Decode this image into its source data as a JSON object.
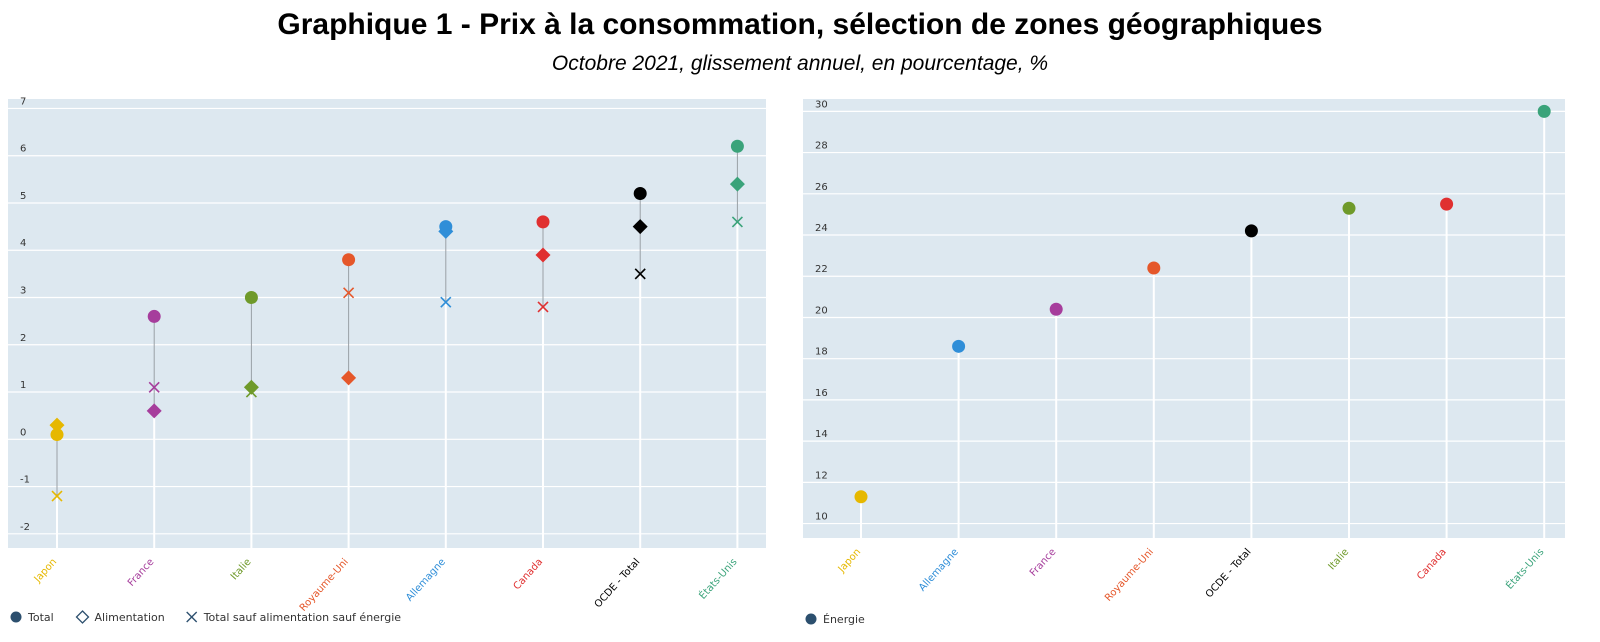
{
  "header": {
    "title": "Graphique 1 - Prix à la consommation, sélection de zones géographiques",
    "subtitle": "Octobre 2021, glissement annuel, en pourcentage, %"
  },
  "chart_data": [
    {
      "type": "scatter",
      "categories": [
        "Japon",
        "France",
        "Italie",
        "Royaume-Uni",
        "Allemagne",
        "Canada",
        "OCDE - Total",
        "États-Unis"
      ],
      "category_colors": [
        "#e6b800",
        "#a63d9c",
        "#6f9a2a",
        "#e5572a",
        "#2f8ed8",
        "#e03030",
        "#000000",
        "#3aa37a"
      ],
      "series": [
        {
          "name": "Total",
          "marker": "circle",
          "values": [
            0.1,
            2.6,
            3.0,
            3.8,
            4.5,
            4.6,
            5.2,
            6.2
          ]
        },
        {
          "name": "Alimentation",
          "marker": "diamond",
          "values": [
            0.3,
            0.6,
            1.1,
            1.3,
            4.4,
            3.9,
            4.5,
            5.4
          ]
        },
        {
          "name": "Total sauf alimentation sauf énergie",
          "marker": "x",
          "values": [
            -1.2,
            1.1,
            1.0,
            3.1,
            2.9,
            2.8,
            3.5,
            4.6
          ]
        }
      ],
      "ylim": [
        -2.3,
        7.2
      ],
      "yticks": [
        -2,
        -1,
        0,
        1,
        2,
        3,
        4,
        5,
        6,
        7
      ]
    },
    {
      "type": "scatter",
      "categories": [
        "Japon",
        "Allemagne",
        "France",
        "Royaume-Uni",
        "OCDE - Total",
        "Italie",
        "Canada",
        "États-Unis"
      ],
      "category_colors": [
        "#e6b800",
        "#2f8ed8",
        "#a63d9c",
        "#e5572a",
        "#000000",
        "#6f9a2a",
        "#e03030",
        "#3aa37a"
      ],
      "series": [
        {
          "name": "Énergie",
          "marker": "circle",
          "values": [
            11.3,
            18.6,
            20.4,
            22.4,
            24.2,
            25.3,
            25.5,
            30.0
          ]
        }
      ],
      "ylim": [
        9.3,
        30.6
      ],
      "yticks": [
        10,
        12,
        14,
        16,
        18,
        20,
        22,
        24,
        26,
        28,
        30
      ]
    }
  ]
}
